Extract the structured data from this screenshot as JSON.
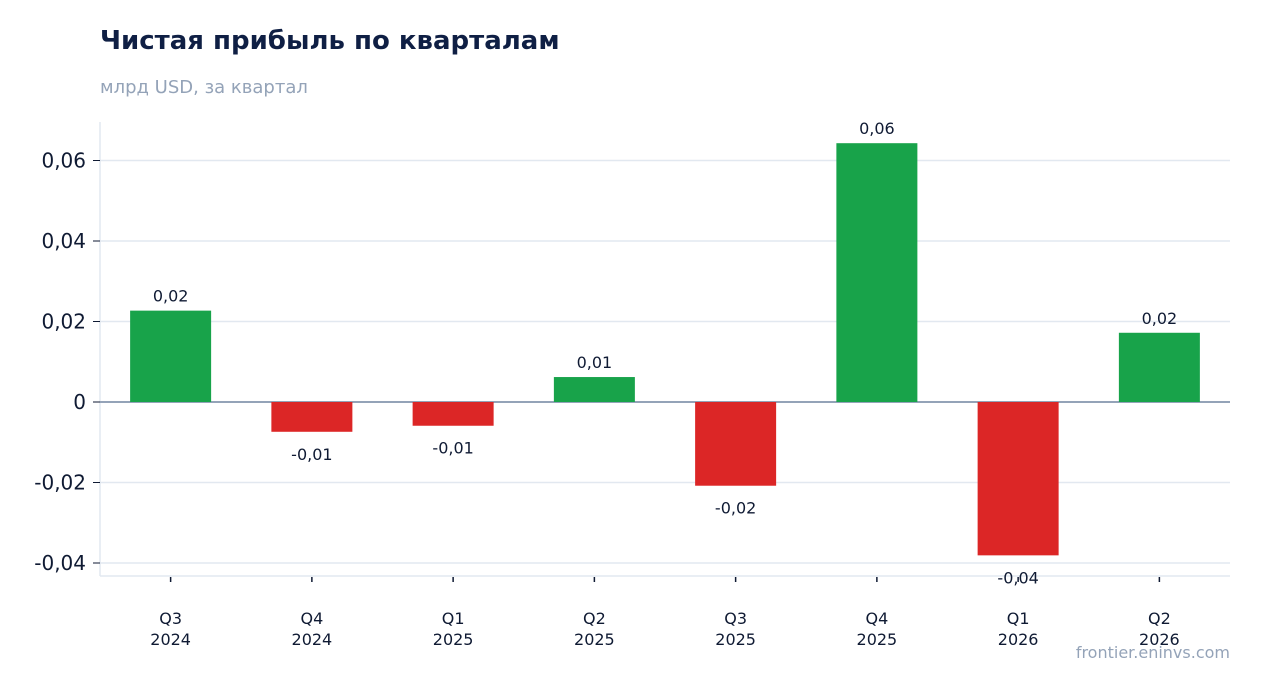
{
  "title": "Чистая прибыль по кварталам",
  "subtitle": "млрд USD, за квартал",
  "watermark": "frontier.eninvs.com",
  "colors": {
    "positive": "#18a34a",
    "negative": "#dc2626",
    "grid": "#e2e8f0",
    "zero_line": "#94a3b8",
    "text": "#0f1a33"
  },
  "chart_data": {
    "type": "bar",
    "title": "Чистая прибыль по кварталам",
    "subtitle": "млрд USD, за квартал",
    "xlabel": "",
    "ylabel": "",
    "categories": [
      [
        "Q3",
        "2024"
      ],
      [
        "Q4",
        "2024"
      ],
      [
        "Q1",
        "2025"
      ],
      [
        "Q2",
        "2025"
      ],
      [
        "Q3",
        "2025"
      ],
      [
        "Q4",
        "2025"
      ],
      [
        "Q1",
        "2026"
      ],
      [
        "Q2",
        "2026"
      ]
    ],
    "values": [
      0.0227,
      -0.0074,
      -0.0059,
      0.0062,
      -0.0208,
      0.0643,
      -0.0381,
      0.0172
    ],
    "data_labels": [
      "0,02",
      "-0,01",
      "-0,01",
      "0,01",
      "-0,02",
      "0,06",
      "-0,04",
      "0,02"
    ],
    "yticks": [
      0.06,
      0.04,
      0.02,
      0,
      -0.02,
      -0.04
    ],
    "ytick_labels": [
      "0,06",
      "0,04",
      "0,02",
      "0",
      "-0,02",
      "-0,04"
    ],
    "ylim": [
      -0.0433,
      0.0698
    ],
    "grid": true,
    "legend": "none"
  }
}
